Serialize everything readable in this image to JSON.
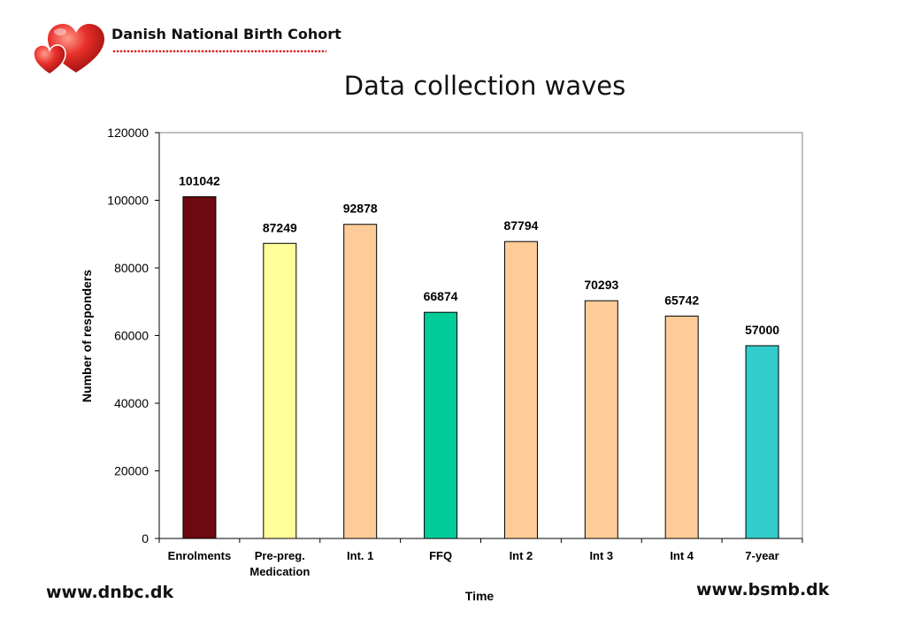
{
  "header": {
    "org_name": "Danish National Birth Cohort",
    "title": "Data collection waves"
  },
  "footer": {
    "left_url": "www.dnbc.dk",
    "right_url": "www.bsmb.dk"
  },
  "chart_data": {
    "type": "bar",
    "title": "Data collection waves",
    "xlabel": "Time",
    "ylabel": "Number of responders",
    "ylim": [
      0,
      120000
    ],
    "yticks": [
      0,
      20000,
      40000,
      60000,
      80000,
      100000,
      120000
    ],
    "grid": false,
    "legend": "none",
    "categories": [
      [
        "Enrolments"
      ],
      [
        "Pre-preg.",
        "Medication"
      ],
      [
        "Int. 1"
      ],
      [
        "FFQ"
      ],
      [
        "Int 2"
      ],
      [
        "Int 3"
      ],
      [
        "Int 4"
      ],
      [
        "7-year"
      ]
    ],
    "values": [
      101042,
      87249,
      92878,
      66874,
      87794,
      70293,
      65742,
      57000
    ],
    "data_labels": [
      "101042",
      "87249",
      "92878",
      "66874",
      "87794",
      "70293",
      "65742",
      "57000"
    ],
    "colors": [
      "#6b0a0f",
      "#ffff99",
      "#ffcc99",
      "#00cc99",
      "#ffcc99",
      "#ffcc99",
      "#ffcc99",
      "#33cccc"
    ]
  }
}
